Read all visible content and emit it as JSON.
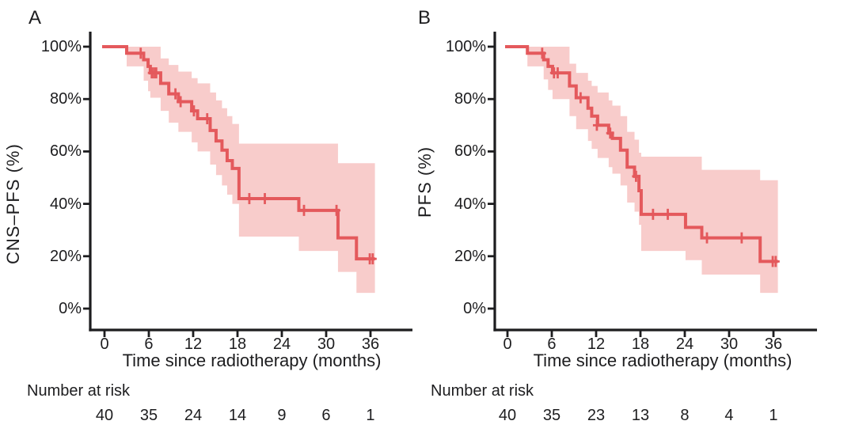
{
  "colors": {
    "curve": "#e4595c",
    "band": "#f8cccb",
    "axis": "#1d1d1f",
    "background": "#ffffff"
  },
  "chart_data": [
    {
      "type": "line",
      "subtype": "kaplan-meier-step",
      "panel_label": "A",
      "ylabel": "CNS–PFS (%)",
      "xlabel": "Time since radiotherapy (months)",
      "x_ticks": [
        0,
        6,
        12,
        18,
        24,
        30,
        36
      ],
      "y_ticks_pct": [
        0,
        20,
        40,
        60,
        80,
        100
      ],
      "xlim": [
        0,
        42
      ],
      "ylim": [
        0,
        100
      ],
      "end_time": 36.6,
      "survival_steps": [
        [
          0,
          100
        ],
        [
          3,
          97.5
        ],
        [
          5.3,
          95
        ],
        [
          5.9,
          92.5
        ],
        [
          6.2,
          90
        ],
        [
          7.6,
          86
        ],
        [
          8.7,
          82
        ],
        [
          10,
          79
        ],
        [
          11.8,
          75.5
        ],
        [
          12.6,
          72.5
        ],
        [
          14.3,
          68
        ],
        [
          15.1,
          64
        ],
        [
          15.9,
          60.5
        ],
        [
          16.6,
          56.5
        ],
        [
          17.3,
          53.5
        ],
        [
          18.2,
          42
        ],
        [
          26.3,
          37.5
        ],
        [
          31.6,
          27
        ],
        [
          34.1,
          19
        ]
      ],
      "censor_marks": [
        [
          4.9,
          97.5
        ],
        [
          6.4,
          90
        ],
        [
          6.7,
          90
        ],
        [
          7.0,
          90
        ],
        [
          9.6,
          82
        ],
        [
          10.3,
          79
        ],
        [
          12.1,
          75.5
        ],
        [
          13.9,
          72.5
        ],
        [
          19.6,
          42
        ],
        [
          21.7,
          42
        ],
        [
          27.0,
          37.5
        ],
        [
          31.4,
          37.5
        ],
        [
          35.9,
          19
        ],
        [
          36.3,
          19
        ]
      ],
      "confidence_band": [
        [
          3,
          92.5,
          100
        ],
        [
          5.3,
          87,
          100
        ],
        [
          5.9,
          83,
          100
        ],
        [
          6.2,
          80.5,
          100
        ],
        [
          7.6,
          75.5,
          95.5
        ],
        [
          8.7,
          71,
          93
        ],
        [
          10,
          67.5,
          90.5
        ],
        [
          11.8,
          63.5,
          88
        ],
        [
          12.6,
          60,
          86
        ],
        [
          14.3,
          55,
          82.5
        ],
        [
          15.1,
          51,
          79.5
        ],
        [
          15.9,
          47,
          76.5
        ],
        [
          16.6,
          43.5,
          73.5
        ],
        [
          17.3,
          40,
          70.5
        ],
        [
          18.2,
          27.5,
          63
        ],
        [
          26.3,
          22,
          63
        ],
        [
          31.6,
          14,
          55.5
        ],
        [
          34.1,
          6,
          55.5
        ]
      ],
      "number_at_risk": {
        "label": "Number at risk",
        "times": [
          0,
          6,
          12,
          18,
          24,
          30,
          36
        ],
        "values": [
          40,
          35,
          24,
          14,
          9,
          6,
          1
        ]
      }
    },
    {
      "type": "line",
      "subtype": "kaplan-meier-step",
      "panel_label": "B",
      "ylabel": "PFS (%)",
      "xlabel": "Time since radiotherapy (months)",
      "x_ticks": [
        0,
        6,
        12,
        18,
        24,
        30,
        36
      ],
      "y_ticks_pct": [
        0,
        20,
        40,
        60,
        80,
        100
      ],
      "xlim": [
        0,
        42
      ],
      "ylim": [
        0,
        100
      ],
      "end_time": 36.6,
      "survival_steps": [
        [
          0,
          100
        ],
        [
          2.7,
          97.5
        ],
        [
          4.9,
          95
        ],
        [
          5.5,
          92.5
        ],
        [
          6.1,
          90
        ],
        [
          8.4,
          85
        ],
        [
          9.3,
          80.5
        ],
        [
          10.9,
          76.5
        ],
        [
          11.4,
          73.5
        ],
        [
          12.2,
          70
        ],
        [
          13.7,
          67
        ],
        [
          14.2,
          65
        ],
        [
          15.3,
          60.5
        ],
        [
          16.2,
          54
        ],
        [
          17.2,
          50.5
        ],
        [
          17.8,
          45
        ],
        [
          18.1,
          36
        ],
        [
          24.1,
          31
        ],
        [
          26.3,
          27
        ],
        [
          34.2,
          18
        ]
      ],
      "censor_marks": [
        [
          4.7,
          97.5
        ],
        [
          6.3,
          90
        ],
        [
          6.8,
          90
        ],
        [
          9.9,
          80.5
        ],
        [
          12.1,
          70
        ],
        [
          13.9,
          67
        ],
        [
          17.4,
          50.5
        ],
        [
          19.7,
          36
        ],
        [
          21.7,
          36
        ],
        [
          27.0,
          27
        ],
        [
          31.7,
          27
        ],
        [
          35.9,
          18
        ],
        [
          36.3,
          18
        ]
      ],
      "confidence_band": [
        [
          2.7,
          92.5,
          100
        ],
        [
          4.9,
          87.5,
          100
        ],
        [
          5.5,
          83.5,
          100
        ],
        [
          6.1,
          80,
          100
        ],
        [
          8.4,
          73.5,
          93.5
        ],
        [
          9.3,
          68.5,
          90
        ],
        [
          10.9,
          64,
          87
        ],
        [
          11.4,
          61,
          85
        ],
        [
          12.2,
          57.5,
          82.5
        ],
        [
          13.7,
          54,
          79.5
        ],
        [
          14.2,
          51.5,
          77.5
        ],
        [
          15.3,
          47,
          73.5
        ],
        [
          16.2,
          40.5,
          67.5
        ],
        [
          17.2,
          37,
          64.5
        ],
        [
          17.8,
          32,
          59.5
        ],
        [
          18.1,
          22,
          58
        ],
        [
          24.1,
          18.5,
          58
        ],
        [
          26.3,
          13,
          53
        ],
        [
          34.2,
          6,
          49
        ]
      ],
      "number_at_risk": {
        "label": "Number at risk",
        "times": [
          0,
          6,
          12,
          18,
          24,
          30,
          36
        ],
        "values": [
          40,
          35,
          23,
          13,
          8,
          4,
          1
        ]
      }
    }
  ]
}
